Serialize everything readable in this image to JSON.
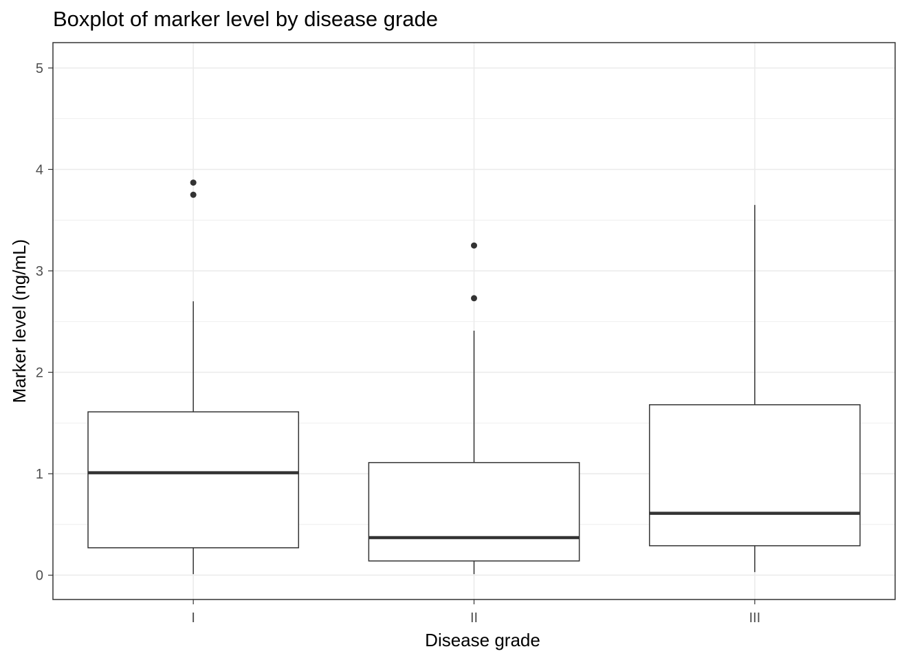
{
  "chart_data": {
    "type": "boxplot",
    "title": "Boxplot of marker level by disease grade",
    "xlabel": "Disease grade",
    "ylabel": "Marker level (ng/mL)",
    "ylim": [
      -0.24,
      5.25
    ],
    "yticks": [
      "0",
      "1",
      "2",
      "3",
      "4",
      "5"
    ],
    "grid": true,
    "categories": [
      "I",
      "II",
      "III"
    ],
    "boxes": [
      {
        "category": "I",
        "whisker_low": 0.01,
        "q1": 0.27,
        "median": 1.01,
        "q3": 1.61,
        "whisker_high": 2.7,
        "outliers": [
          3.75,
          3.87
        ]
      },
      {
        "category": "II",
        "whisker_low": 0.01,
        "q1": 0.14,
        "median": 0.37,
        "q3": 1.11,
        "whisker_high": 2.41,
        "outliers": [
          2.73,
          3.25
        ]
      },
      {
        "category": "III",
        "whisker_low": 0.03,
        "q1": 0.29,
        "median": 0.61,
        "q3": 1.68,
        "whisker_high": 3.65,
        "outliers": []
      }
    ],
    "colors": {
      "box_line": "#333333",
      "grid": "#ebebeb",
      "panel_border": "#333333",
      "point": "#333333"
    }
  }
}
